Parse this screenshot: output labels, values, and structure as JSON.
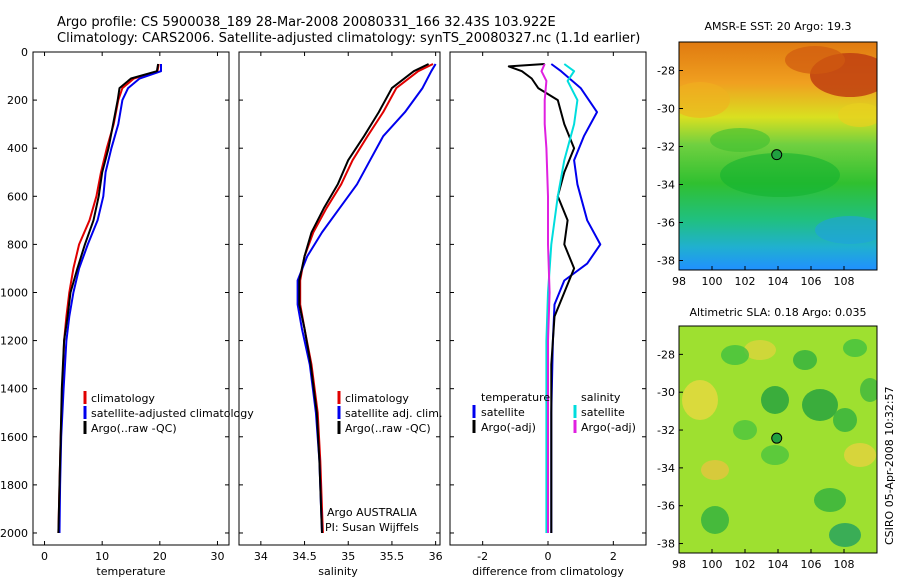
{
  "figure": {
    "title_line1": "Argo profile: CS 5900038_189 28-Mar-2008 20080331_166 32.43S 103.922E",
    "title_line2": "Climatology: CARS2006. Satellite-adjusted climatology: synTS_20080327.nc (1.1d earlier)",
    "side_text": "CSIRO 05-Apr-2008 10:32:57",
    "argo_note_line1": "Argo AUSTRALIA",
    "argo_note_line2": "PI: Susan Wijffels"
  },
  "colors": {
    "climatology": "#e00000",
    "satellite": "#0000ee",
    "argo": "#000000",
    "cyan": "#00dddd",
    "magenta": "#e020e0"
  },
  "chart_data": [
    {
      "type": "line",
      "id": "temperature",
      "xlabel": "temperature",
      "ylabel": "",
      "xlim": [
        -2,
        32
      ],
      "ylim": [
        2050,
        0
      ],
      "xticks": [
        0,
        10,
        20,
        30
      ],
      "yticks": [
        0,
        200,
        400,
        600,
        800,
        1000,
        1200,
        1400,
        1600,
        1800,
        2000
      ],
      "legend": [
        "climatology",
        "satellite-adjusted climatology",
        "Argo(..raw -QC)"
      ],
      "series": [
        {
          "name": "climatology",
          "color": "#e00000",
          "points": [
            [
              19.8,
              50
            ],
            [
              19.6,
              80
            ],
            [
              15.5,
              110
            ],
            [
              13.5,
              150
            ],
            [
              12.8,
              200
            ],
            [
              12.0,
              300
            ],
            [
              10.8,
              400
            ],
            [
              9.8,
              500
            ],
            [
              9.0,
              600
            ],
            [
              7.8,
              700
            ],
            [
              6.0,
              800
            ],
            [
              5.0,
              900
            ],
            [
              4.3,
              1000
            ],
            [
              3.8,
              1100
            ],
            [
              3.4,
              1200
            ],
            [
              3.1,
              1400
            ],
            [
              2.8,
              1600
            ],
            [
              2.6,
              1800
            ],
            [
              2.4,
              2000
            ]
          ]
        },
        {
          "name": "satellite-adjusted climatology",
          "color": "#0000ee",
          "points": [
            [
              20.2,
              50
            ],
            [
              20.2,
              80
            ],
            [
              16.5,
              110
            ],
            [
              14.5,
              150
            ],
            [
              13.5,
              200
            ],
            [
              12.8,
              300
            ],
            [
              11.6,
              400
            ],
            [
              10.6,
              500
            ],
            [
              10.2,
              600
            ],
            [
              9.2,
              700
            ],
            [
              7.5,
              800
            ],
            [
              6.0,
              900
            ],
            [
              5.0,
              1000
            ],
            [
              4.3,
              1100
            ],
            [
              3.8,
              1200
            ],
            [
              3.3,
              1400
            ],
            [
              2.9,
              1600
            ],
            [
              2.7,
              1800
            ],
            [
              2.6,
              2000
            ]
          ]
        },
        {
          "name": "Argo(..raw -QC)",
          "color": "#000000",
          "points": [
            [
              19.7,
              50
            ],
            [
              19.5,
              80
            ],
            [
              15.0,
              110
            ],
            [
              13.0,
              150
            ],
            [
              12.7,
              200
            ],
            [
              11.9,
              300
            ],
            [
              11.1,
              400
            ],
            [
              10.0,
              500
            ],
            [
              9.4,
              600
            ],
            [
              8.5,
              700
            ],
            [
              7.0,
              800
            ],
            [
              5.7,
              900
            ],
            [
              4.5,
              1000
            ],
            [
              4.0,
              1100
            ],
            [
              3.4,
              1200
            ],
            [
              3.0,
              1400
            ],
            [
              2.8,
              1600
            ],
            [
              2.6,
              1800
            ],
            [
              2.4,
              2000
            ]
          ]
        }
      ]
    },
    {
      "type": "line",
      "id": "salinity",
      "xlabel": "salinity",
      "ylabel": "",
      "xlim": [
        33.75,
        36.05
      ],
      "ylim": [
        2050,
        0
      ],
      "xticks": [
        34,
        34.5,
        35,
        35.5,
        36
      ],
      "legend": [
        "climatology",
        "satellite adj. clim.",
        "Argo(..raw -QC)"
      ],
      "series": [
        {
          "name": "climatology",
          "color": "#e00000",
          "points": [
            [
              35.97,
              50
            ],
            [
              35.8,
              80
            ],
            [
              35.55,
              150
            ],
            [
              35.4,
              250
            ],
            [
              35.22,
              350
            ],
            [
              35.05,
              450
            ],
            [
              34.92,
              550
            ],
            [
              34.75,
              650
            ],
            [
              34.6,
              750
            ],
            [
              34.5,
              850
            ],
            [
              34.45,
              950
            ],
            [
              34.45,
              1050
            ],
            [
              34.5,
              1150
            ],
            [
              34.58,
              1300
            ],
            [
              34.65,
              1500
            ],
            [
              34.68,
              1700
            ],
            [
              34.7,
              1900
            ],
            [
              34.71,
              2000
            ]
          ]
        },
        {
          "name": "satellite adj. clim.",
          "color": "#0000ee",
          "points": [
            [
              36.0,
              50
            ],
            [
              35.95,
              80
            ],
            [
              35.85,
              150
            ],
            [
              35.65,
              250
            ],
            [
              35.4,
              350
            ],
            [
              35.25,
              450
            ],
            [
              35.1,
              550
            ],
            [
              34.9,
              650
            ],
            [
              34.7,
              750
            ],
            [
              34.53,
              850
            ],
            [
              34.42,
              950
            ],
            [
              34.42,
              1050
            ],
            [
              34.47,
              1150
            ],
            [
              34.56,
              1300
            ],
            [
              34.63,
              1500
            ],
            [
              34.67,
              1700
            ],
            [
              34.69,
              1900
            ],
            [
              34.7,
              2000
            ]
          ]
        },
        {
          "name": "Argo(..raw -QC)",
          "color": "#000000",
          "points": [
            [
              35.92,
              50
            ],
            [
              35.75,
              80
            ],
            [
              35.5,
              150
            ],
            [
              35.35,
              250
            ],
            [
              35.18,
              350
            ],
            [
              35.0,
              450
            ],
            [
              34.88,
              550
            ],
            [
              34.72,
              650
            ],
            [
              34.58,
              750
            ],
            [
              34.5,
              850
            ],
            [
              34.44,
              950
            ],
            [
              34.44,
              1050
            ],
            [
              34.5,
              1150
            ],
            [
              34.57,
              1300
            ],
            [
              34.64,
              1500
            ],
            [
              34.67,
              1700
            ],
            [
              34.69,
              1900
            ],
            [
              34.7,
              2000
            ]
          ]
        }
      ]
    },
    {
      "type": "line",
      "id": "difference",
      "xlabel": "difference from climatology",
      "ylabel": "",
      "xlim": [
        -3,
        3
      ],
      "ylim": [
        2050,
        0
      ],
      "xticks": [
        -2,
        0,
        2
      ],
      "legend_temperature": {
        "heading": "temperature",
        "items": [
          "satellite",
          "Argo(-adj)"
        ]
      },
      "legend_salinity": {
        "heading": "salinity",
        "items": [
          "satellite",
          "Argo(-adj)"
        ]
      },
      "series": [
        {
          "name": "temperature satellite",
          "color": "#0000ee",
          "points": [
            [
              0.1,
              50
            ],
            [
              0.4,
              80
            ],
            [
              1.0,
              150
            ],
            [
              1.5,
              250
            ],
            [
              1.1,
              350
            ],
            [
              0.8,
              450
            ],
            [
              0.9,
              550
            ],
            [
              1.2,
              700
            ],
            [
              1.6,
              800
            ],
            [
              1.2,
              880
            ],
            [
              0.5,
              950
            ],
            [
              0.2,
              1050
            ],
            [
              0.15,
              1200
            ],
            [
              0.1,
              1500
            ],
            [
              0.1,
              2000
            ]
          ]
        },
        {
          "name": "temperature Argo(-adj)",
          "color": "#000000",
          "points": [
            [
              -0.1,
              50
            ],
            [
              -1.2,
              60
            ],
            [
              -0.8,
              80
            ],
            [
              -0.5,
              110
            ],
            [
              -0.3,
              150
            ],
            [
              0.3,
              200
            ],
            [
              0.5,
              300
            ],
            [
              0.8,
              400
            ],
            [
              0.5,
              500
            ],
            [
              0.3,
              600
            ],
            [
              0.6,
              700
            ],
            [
              0.5,
              800
            ],
            [
              0.8,
              900
            ],
            [
              0.5,
              1000
            ],
            [
              0.2,
              1100
            ],
            [
              0.1,
              1300
            ],
            [
              0.1,
              1600
            ],
            [
              0.1,
              2000
            ]
          ]
        },
        {
          "name": "salinity satellite",
          "color": "#00dddd",
          "points": [
            [
              0.5,
              50
            ],
            [
              0.8,
              80
            ],
            [
              0.6,
              120
            ],
            [
              0.9,
              200
            ],
            [
              0.8,
              300
            ],
            [
              0.5,
              450
            ],
            [
              0.3,
              600
            ],
            [
              0.1,
              800
            ],
            [
              0.0,
              1000
            ],
            [
              -0.05,
              1200
            ],
            [
              -0.05,
              1600
            ],
            [
              -0.05,
              2000
            ]
          ]
        },
        {
          "name": "salinity Argo(-adj)",
          "color": "#e020e0",
          "points": [
            [
              -0.1,
              50
            ],
            [
              -0.2,
              80
            ],
            [
              -0.05,
              120
            ],
            [
              -0.1,
              200
            ],
            [
              -0.1,
              300
            ],
            [
              -0.05,
              400
            ],
            [
              0.0,
              600
            ],
            [
              0.0,
              800
            ],
            [
              0.05,
              1000
            ],
            [
              0.0,
              1200
            ],
            [
              0.0,
              1600
            ],
            [
              0.0,
              2000
            ]
          ]
        }
      ]
    },
    {
      "type": "heatmap",
      "id": "sst_map",
      "title": "AMSR-E SST: 20 Argo: 19.3",
      "xlim": [
        98,
        110
      ],
      "ylim": [
        -38.5,
        -26.5
      ],
      "xticks": [
        98,
        100,
        102,
        104,
        106,
        108
      ],
      "yticks": [
        -28,
        -30,
        -32,
        -34,
        -36,
        -38
      ],
      "marker": {
        "lon": 103.922,
        "lat": -32.43
      }
    },
    {
      "type": "heatmap",
      "id": "sla_map",
      "title": "Altimetric SLA: 0.18 Argo: 0.035",
      "xlim": [
        98,
        110
      ],
      "ylim": [
        -38.5,
        -26.5
      ],
      "xticks": [
        98,
        100,
        102,
        104,
        106,
        108
      ],
      "yticks": [
        -28,
        -30,
        -32,
        -34,
        -36,
        -38
      ],
      "marker": {
        "lon": 103.922,
        "lat": -32.43
      }
    }
  ]
}
